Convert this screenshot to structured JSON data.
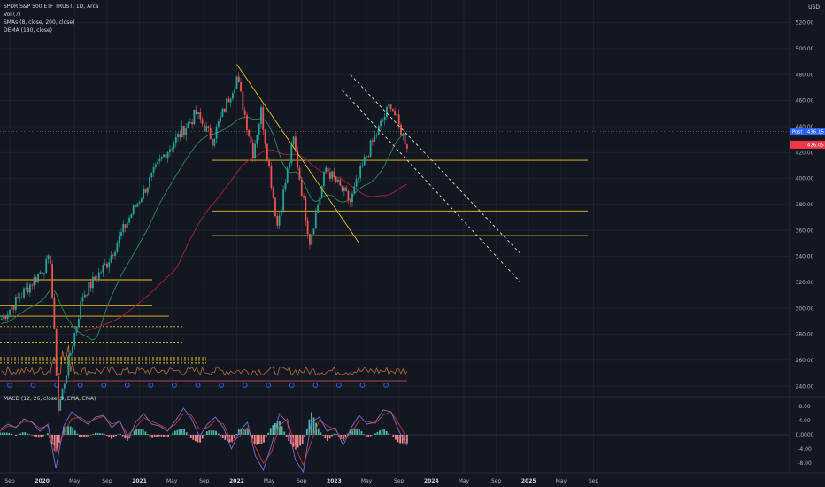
{
  "header": {
    "symbol_line": "SPDR S&P 500 ETF TRUST, 1D, Arca",
    "indicators": [
      "Vol (7)",
      "SMAs (8, close, 200, close)",
      "DEMA (180, close)"
    ],
    "currency": "USD"
  },
  "macd_legend": "MACD (12, 26, close, 9, EMA, EMA)",
  "price_tags": {
    "current_label": "Post",
    "current_value": "436.15",
    "secondary_value": "426.05"
  },
  "colors": {
    "background": "#131722",
    "grid": "#1e222d",
    "up": "#26a69a",
    "down": "#ef5350",
    "trendline": "#f0c419",
    "channel": "#e8e0b0",
    "sma_fast": "#2e8b57",
    "dema": "#b22234",
    "macd_line": "#7b6cd9",
    "signal_line": "#c0392b",
    "hist_pos": "#4fb7a5",
    "hist_neg": "#f08a8a",
    "volume_line": "#e07b39",
    "post_tag": "#2962ff",
    "last_tag": "#f23645"
  },
  "chart_data": [
    {
      "type": "candlestick",
      "title": "SPDR S&P 500 ETF TRUST, 1D, Arca",
      "ylabel": "USD",
      "y_ticks": [
        240,
        260,
        280,
        300,
        320,
        340,
        360,
        380,
        400,
        420,
        440,
        460,
        480,
        500,
        520
      ],
      "ylim": [
        232,
        532
      ],
      "x_ticks": [
        "Sep",
        "2020",
        "May",
        "Sep",
        "2021",
        "May",
        "Sep",
        "2022",
        "May",
        "Sep",
        "2023",
        "May",
        "Sep",
        "2024",
        "May",
        "Sep",
        "2025",
        "May",
        "Sep"
      ],
      "price_path": [
        {
          "x": "2019-08",
          "y": 292
        },
        {
          "x": "2019-12",
          "y": 322
        },
        {
          "x": "2020-02",
          "y": 338
        },
        {
          "x": "2020-03",
          "y": 222
        },
        {
          "x": "2020-06",
          "y": 310
        },
        {
          "x": "2020-09",
          "y": 335
        },
        {
          "x": "2020-12",
          "y": 373
        },
        {
          "x": "2021-04",
          "y": 418
        },
        {
          "x": "2021-08",
          "y": 450
        },
        {
          "x": "2021-10",
          "y": 430
        },
        {
          "x": "2022-01",
          "y": 478
        },
        {
          "x": "2022-03",
          "y": 420
        },
        {
          "x": "2022-04",
          "y": 452
        },
        {
          "x": "2022-06",
          "y": 364
        },
        {
          "x": "2022-08",
          "y": 430
        },
        {
          "x": "2022-10",
          "y": 352
        },
        {
          "x": "2022-12",
          "y": 408
        },
        {
          "x": "2023-03",
          "y": 382
        },
        {
          "x": "2023-05",
          "y": 418
        },
        {
          "x": "2023-08",
          "y": 458
        },
        {
          "x": "2023-09",
          "y": 440
        },
        {
          "x": "2023-10",
          "y": 426
        }
      ],
      "last_values": {
        "post": 436.15,
        "close": 426.05
      },
      "horizontal_levels": [
        {
          "y": 414,
          "style": "solid",
          "color": "#f0c419"
        },
        {
          "y": 375,
          "style": "solid",
          "color": "#f0c419"
        },
        {
          "y": 356,
          "style": "solid",
          "color": "#f0c419"
        },
        {
          "y": 322,
          "style": "solid",
          "color": "#f0c419"
        },
        {
          "y": 302,
          "style": "solid",
          "color": "#f0c419"
        },
        {
          "y": 294,
          "style": "solid",
          "color": "#f0c419"
        },
        {
          "y": 286,
          "style": "dashed",
          "color": "#f0c419"
        },
        {
          "y": 274,
          "style": "dashed",
          "color": "#f0c419"
        },
        {
          "y": 262,
          "style": "dashed",
          "color": "#f0c419"
        },
        {
          "y": 260,
          "style": "dashed",
          "color": "#f0c419"
        },
        {
          "y": 258,
          "style": "dashed",
          "color": "#f0c419"
        }
      ],
      "trendlines": [
        {
          "from": {
            "x": "2022-01",
            "y": 488
          },
          "to": {
            "x": "2023-04",
            "y": 351
          },
          "style": "solid"
        },
        {
          "from": {
            "x": "2023-03",
            "y": 480
          },
          "to": {
            "x": "2024-12",
            "y": 342
          },
          "style": "dashed"
        },
        {
          "from": {
            "x": "2023-02",
            "y": 468
          },
          "to": {
            "x": "2024-12",
            "y": 320
          },
          "style": "dashed"
        }
      ]
    },
    {
      "type": "line",
      "title": "MACD (12, 26, close, 9, EMA, EMA)",
      "y_ticks": [
        "8.00",
        "4.00",
        "0.0000",
        "-4.00",
        "-8.00"
      ],
      "ylim": [
        -10.5,
        10.5
      ],
      "series": [
        {
          "name": "MACD",
          "values": [
            1.5,
            3.0,
            2.0,
            4.5,
            3.5,
            1.0,
            3.0,
            -9.5,
            2.5,
            6.5,
            4.5,
            3.0,
            5.0,
            5.5,
            2.0,
            4.0,
            -1.5,
            3.5,
            6.0,
            3.0,
            2.5,
            1.0,
            4.0,
            7.5,
            4.5,
            -0.5,
            3.0,
            5.0,
            2.0,
            -4.0,
            1.0,
            3.5,
            -6.0,
            -10.0,
            -3.0,
            6.0,
            3.5,
            -7.0,
            -10.5,
            3.5,
            5.0,
            1.0,
            2.0,
            -3.0,
            2.0,
            5.5,
            3.0,
            3.5,
            7.0,
            6.5,
            1.0,
            -3.0
          ]
        },
        {
          "name": "Signal",
          "values": [
            1.0,
            2.5,
            2.2,
            3.8,
            3.6,
            1.8,
            2.6,
            -5.0,
            0.5,
            4.5,
            5.0,
            3.5,
            4.5,
            5.2,
            3.0,
            3.6,
            0.0,
            2.0,
            4.8,
            3.8,
            2.8,
            1.6,
            3.0,
            6.0,
            5.5,
            1.5,
            2.0,
            4.0,
            3.0,
            -2.0,
            -0.5,
            2.0,
            -3.5,
            -8.0,
            -5.0,
            2.5,
            4.5,
            -3.5,
            -8.5,
            -2.0,
            4.0,
            2.5,
            1.5,
            -1.5,
            0.5,
            4.0,
            3.8,
            3.2,
            5.5,
            6.5,
            3.0,
            -1.0
          ]
        }
      ]
    }
  ]
}
